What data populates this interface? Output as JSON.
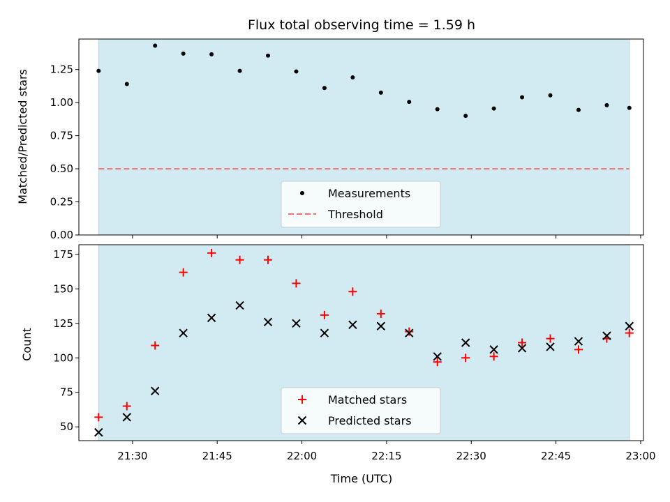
{
  "chart_data": [
    {
      "type": "scatter",
      "title": "Flux total observing time = 1.59 h",
      "xlabel": "",
      "ylabel": "Matched/Predicted stars",
      "xlim": [
        "21:20:30",
        "23:00:30"
      ],
      "ylim": [
        0,
        1.48
      ],
      "yticks": [
        "0.00",
        "0.25",
        "0.50",
        "0.75",
        "1.00",
        "1.25"
      ],
      "shaded_span": [
        "21:24",
        "22:58"
      ],
      "shade_color": "#add8e6",
      "legend_position": "bottom-center",
      "series": [
        {
          "name": "Measurements",
          "marker": "dot",
          "color": "#000000",
          "x": [
            "21:24",
            "21:29",
            "21:34",
            "21:39",
            "21:44",
            "21:49",
            "21:54",
            "21:59",
            "22:04",
            "22:09",
            "22:14",
            "22:19",
            "22:24",
            "22:29",
            "22:34",
            "22:39",
            "22:44",
            "22:49",
            "22:54",
            "22:58"
          ],
          "y": [
            1.24,
            1.14,
            1.43,
            1.37,
            1.365,
            1.24,
            1.355,
            1.235,
            1.11,
            1.19,
            1.075,
            1.005,
            0.95,
            0.9,
            0.955,
            1.04,
            1.055,
            0.945,
            0.98,
            0.96
          ]
        }
      ],
      "reference_lines": [
        {
          "name": "Threshold",
          "y": 0.5,
          "style": "dashed",
          "color": "#f07070"
        }
      ]
    },
    {
      "type": "scatter",
      "title": "",
      "xlabel": "Time (UTC)",
      "ylabel": "Count",
      "xlim": [
        "21:20:30",
        "23:00:30"
      ],
      "ylim": [
        40,
        182
      ],
      "yticks": [
        "50",
        "75",
        "100",
        "125",
        "150",
        "175"
      ],
      "xticks": [
        "21:30",
        "21:45",
        "22:00",
        "22:15",
        "22:30",
        "22:45",
        "23:00"
      ],
      "shaded_span": [
        "21:24",
        "22:58"
      ],
      "shade_color": "#add8e6",
      "legend_position": "bottom-center",
      "x": [
        "21:24",
        "21:29",
        "21:34",
        "21:39",
        "21:44",
        "21:49",
        "21:54",
        "21:59",
        "22:04",
        "22:09",
        "22:14",
        "22:19",
        "22:24",
        "22:29",
        "22:34",
        "22:39",
        "22:44",
        "22:49",
        "22:54",
        "22:58"
      ],
      "series": [
        {
          "name": "Matched stars",
          "marker": "plus",
          "color": "#ff0000",
          "values": [
            57,
            65,
            109,
            162,
            176,
            171,
            171,
            154,
            131,
            148,
            132,
            119,
            97,
            100,
            101,
            111,
            114,
            106,
            114,
            118
          ]
        },
        {
          "name": "Predicted stars",
          "marker": "x",
          "color": "#000000",
          "values": [
            46,
            57,
            76,
            118,
            129,
            138,
            126,
            125,
            118,
            124,
            123,
            118,
            101,
            111,
            106,
            107,
            108,
            112,
            116,
            123
          ]
        }
      ]
    }
  ]
}
